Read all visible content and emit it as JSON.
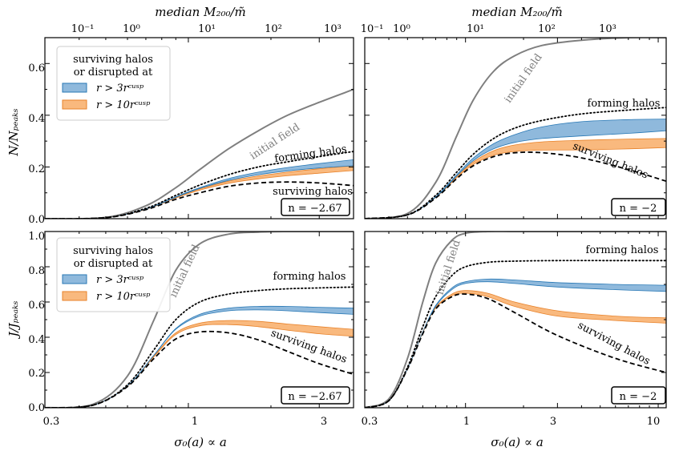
{
  "figure": {
    "top_axis_label": "median M₂₀₀/m̃",
    "bottom_axis_label": "σ₀(a) ∝ a",
    "ylabel_top": "N/Nₚₑₐₖₛ",
    "ylabel_bottom": "J/Jₚₑₐₖₛ",
    "top_ticks_left": [
      "10⁻¹",
      "10⁰",
      "10¹",
      "10²",
      "10³"
    ],
    "top_ticks_right": [
      "10⁻¹",
      "10⁰",
      "10¹",
      "10²",
      "10³"
    ],
    "bottom_ticks_left": [
      "0.3",
      "1",
      "3"
    ],
    "bottom_ticks_right": [
      "0.3",
      "1",
      "3",
      "10"
    ],
    "y_ticks_top": [
      "0.0",
      "0.2",
      "0.4",
      "0.6"
    ],
    "y_ticks_bottom": [
      "0.0",
      "0.2",
      "0.4",
      "0.6",
      "0.8",
      "1.0"
    ],
    "legend": {
      "title_line1": "surviving halos",
      "title_line2": "or disrupted at",
      "entry1": "r > 3rᶜᵘˢᵖ",
      "entry2": "r > 10rᶜᵘˢᵖ"
    },
    "labels": {
      "initial_field": "initial field",
      "forming_halos": "forming halos",
      "surviving_halos": "surviving halos"
    },
    "n_left": "n = −2.67",
    "n_right": "n = −2",
    "colors": {
      "initial": "#7f7f7f",
      "blue_fill": "#8fb9dc",
      "blue_line": "#2878b5",
      "orange_fill": "#f9b97e",
      "orange_line": "#e8822a"
    }
  },
  "chart_data": [
    {
      "type": "line",
      "panel": "top-left",
      "xscale": "log",
      "xlim": [
        0.3,
        4.0
      ],
      "ylim": [
        0.0,
        0.7
      ],
      "ylabel": "N/N_peaks",
      "series": [
        {
          "name": "initial field",
          "x": [
            0.3,
            0.5,
            0.7,
            0.9,
            1.1,
            1.4,
            1.8,
            2.3,
            3.0,
            4.0
          ],
          "y": [
            0.0,
            0.005,
            0.05,
            0.12,
            0.19,
            0.27,
            0.34,
            0.4,
            0.45,
            0.5
          ]
        },
        {
          "name": "forming halos",
          "x": [
            0.3,
            0.5,
            0.7,
            0.9,
            1.1,
            1.4,
            1.8,
            2.3,
            3.0,
            4.0
          ],
          "y": [
            0.0,
            0.004,
            0.04,
            0.09,
            0.13,
            0.17,
            0.2,
            0.22,
            0.24,
            0.26
          ]
        },
        {
          "name": "r > 3r_cusp upper",
          "x": [
            0.3,
            0.5,
            0.7,
            0.9,
            1.1,
            1.4,
            1.8,
            2.3,
            3.0,
            4.0
          ],
          "y": [
            0.0,
            0.004,
            0.038,
            0.085,
            0.12,
            0.155,
            0.18,
            0.198,
            0.213,
            0.228
          ]
        },
        {
          "name": "r > 3r_cusp lower",
          "x": [
            0.3,
            0.5,
            0.7,
            0.9,
            1.1,
            1.4,
            1.8,
            2.3,
            3.0,
            4.0
          ],
          "y": [
            0.0,
            0.004,
            0.037,
            0.083,
            0.117,
            0.148,
            0.17,
            0.185,
            0.196,
            0.205
          ]
        },
        {
          "name": "r > 10r_cusp upper",
          "x": [
            0.3,
            0.5,
            0.7,
            0.9,
            1.1,
            1.4,
            1.8,
            2.3,
            3.0,
            4.0
          ],
          "y": [
            0.0,
            0.004,
            0.037,
            0.082,
            0.115,
            0.145,
            0.165,
            0.18,
            0.193,
            0.205
          ]
        },
        {
          "name": "r > 10r_cusp lower",
          "x": [
            0.3,
            0.5,
            0.7,
            0.9,
            1.1,
            1.4,
            1.8,
            2.3,
            3.0,
            4.0
          ],
          "y": [
            0.0,
            0.004,
            0.036,
            0.08,
            0.11,
            0.137,
            0.154,
            0.166,
            0.176,
            0.186
          ]
        },
        {
          "name": "surviving halos",
          "x": [
            0.3,
            0.5,
            0.7,
            0.9,
            1.1,
            1.4,
            1.8,
            2.3,
            3.0,
            4.0
          ],
          "y": [
            0.0,
            0.004,
            0.035,
            0.075,
            0.1,
            0.125,
            0.138,
            0.142,
            0.138,
            0.128
          ]
        }
      ],
      "annotation": "n = −2.67"
    },
    {
      "type": "line",
      "panel": "top-right",
      "xscale": "log",
      "xlim": [
        0.3,
        11.0
      ],
      "ylim": [
        0.0,
        0.7
      ],
      "series": [
        {
          "name": "initial field",
          "x": [
            0.3,
            0.5,
            0.7,
            0.9,
            1.1,
            1.4,
            1.8,
            2.5,
            4.0,
            7.0,
            11.0
          ],
          "y": [
            0.0,
            0.02,
            0.14,
            0.32,
            0.46,
            0.57,
            0.63,
            0.67,
            0.69,
            0.7,
            0.7
          ]
        },
        {
          "name": "forming halos",
          "x": [
            0.3,
            0.5,
            0.7,
            0.9,
            1.1,
            1.4,
            1.8,
            2.5,
            4.0,
            7.0,
            11.0
          ],
          "y": [
            0.0,
            0.015,
            0.09,
            0.18,
            0.25,
            0.31,
            0.35,
            0.38,
            0.405,
            0.42,
            0.43
          ]
        },
        {
          "name": "r > 3r_cusp upper",
          "x": [
            0.3,
            0.5,
            0.7,
            0.9,
            1.1,
            1.4,
            1.8,
            2.5,
            4.0,
            7.0,
            11.0
          ],
          "y": [
            0.0,
            0.015,
            0.085,
            0.17,
            0.235,
            0.29,
            0.325,
            0.355,
            0.375,
            0.383,
            0.385
          ]
        },
        {
          "name": "r > 3r_cusp lower",
          "x": [
            0.3,
            0.5,
            0.7,
            0.9,
            1.1,
            1.4,
            1.8,
            2.5,
            4.0,
            7.0,
            11.0
          ],
          "y": [
            0.0,
            0.015,
            0.083,
            0.165,
            0.225,
            0.27,
            0.295,
            0.31,
            0.32,
            0.33,
            0.34
          ]
        },
        {
          "name": "r > 10r_cusp upper",
          "x": [
            0.3,
            0.5,
            0.7,
            0.9,
            1.1,
            1.4,
            1.8,
            2.5,
            4.0,
            7.0,
            11.0
          ],
          "y": [
            0.0,
            0.015,
            0.083,
            0.163,
            0.22,
            0.263,
            0.285,
            0.297,
            0.303,
            0.308,
            0.31
          ]
        },
        {
          "name": "r > 10r_cusp lower",
          "x": [
            0.3,
            0.5,
            0.7,
            0.9,
            1.1,
            1.4,
            1.8,
            2.5,
            4.0,
            7.0,
            11.0
          ],
          "y": [
            0.0,
            0.015,
            0.082,
            0.158,
            0.21,
            0.245,
            0.26,
            0.265,
            0.266,
            0.27,
            0.275
          ]
        },
        {
          "name": "surviving halos",
          "x": [
            0.3,
            0.5,
            0.7,
            0.9,
            1.1,
            1.4,
            1.8,
            2.5,
            4.0,
            7.0,
            11.0
          ],
          "y": [
            0.0,
            0.015,
            0.08,
            0.155,
            0.205,
            0.24,
            0.255,
            0.255,
            0.235,
            0.19,
            0.145
          ]
        }
      ],
      "annotation": "n = −2"
    },
    {
      "type": "line",
      "panel": "bottom-left",
      "xscale": "log",
      "xlim": [
        0.3,
        4.0
      ],
      "ylim": [
        0.0,
        1.0
      ],
      "ylabel": "J/J_peaks",
      "series": [
        {
          "name": "initial field",
          "x": [
            0.3,
            0.45,
            0.6,
            0.75,
            0.9,
            1.1,
            1.4,
            1.8,
            2.3,
            3.0,
            4.0
          ],
          "y": [
            0.0,
            0.02,
            0.18,
            0.5,
            0.78,
            0.93,
            0.985,
            0.997,
            1.0,
            1.0,
            1.0
          ]
        },
        {
          "name": "forming halos",
          "x": [
            0.3,
            0.45,
            0.6,
            0.75,
            0.9,
            1.1,
            1.4,
            1.8,
            2.3,
            3.0,
            4.0
          ],
          "y": [
            0.0,
            0.015,
            0.13,
            0.33,
            0.5,
            0.6,
            0.645,
            0.665,
            0.675,
            0.68,
            0.685
          ]
        },
        {
          "name": "r > 3r_cusp upper",
          "x": [
            0.3,
            0.45,
            0.6,
            0.75,
            0.9,
            1.1,
            1.4,
            1.8,
            2.3,
            3.0,
            4.0
          ],
          "y": [
            0.0,
            0.015,
            0.125,
            0.3,
            0.45,
            0.53,
            0.565,
            0.575,
            0.575,
            0.57,
            0.565
          ]
        },
        {
          "name": "r > 3r_cusp lower",
          "x": [
            0.3,
            0.45,
            0.6,
            0.75,
            0.9,
            1.1,
            1.4,
            1.8,
            2.3,
            3.0,
            4.0
          ],
          "y": [
            0.0,
            0.015,
            0.124,
            0.298,
            0.445,
            0.52,
            0.55,
            0.555,
            0.55,
            0.54,
            0.53
          ]
        },
        {
          "name": "r > 10r_cusp upper",
          "x": [
            0.3,
            0.45,
            0.6,
            0.75,
            0.9,
            1.1,
            1.4,
            1.8,
            2.3,
            3.0,
            4.0
          ],
          "y": [
            0.0,
            0.015,
            0.123,
            0.295,
            0.425,
            0.48,
            0.495,
            0.49,
            0.475,
            0.46,
            0.445
          ]
        },
        {
          "name": "r > 10r_cusp lower",
          "x": [
            0.3,
            0.45,
            0.6,
            0.75,
            0.9,
            1.1,
            1.4,
            1.8,
            2.3,
            3.0,
            4.0
          ],
          "y": [
            0.0,
            0.015,
            0.122,
            0.29,
            0.415,
            0.465,
            0.472,
            0.46,
            0.44,
            0.42,
            0.405
          ]
        },
        {
          "name": "surviving halos",
          "x": [
            0.3,
            0.45,
            0.6,
            0.75,
            0.9,
            1.1,
            1.4,
            1.8,
            2.3,
            3.0,
            4.0
          ],
          "y": [
            0.0,
            0.015,
            0.12,
            0.28,
            0.39,
            0.43,
            0.425,
            0.385,
            0.32,
            0.25,
            0.19
          ]
        }
      ],
      "annotation": "n = −2.67"
    },
    {
      "type": "line",
      "panel": "bottom-right",
      "xscale": "log",
      "xlim": [
        0.3,
        11.0
      ],
      "ylim": [
        0.0,
        1.0
      ],
      "series": [
        {
          "name": "initial field",
          "x": [
            0.3,
            0.4,
            0.5,
            0.6,
            0.7,
            0.85,
            1.0,
            1.3,
            1.8,
            3.0,
            6.0,
            11.0
          ],
          "y": [
            0.0,
            0.05,
            0.28,
            0.6,
            0.82,
            0.95,
            0.99,
            1.0,
            1.0,
            1.0,
            1.0,
            1.0
          ]
        },
        {
          "name": "forming halos",
          "x": [
            0.3,
            0.4,
            0.5,
            0.6,
            0.7,
            0.85,
            1.0,
            1.3,
            1.8,
            3.0,
            6.0,
            11.0
          ],
          "y": [
            0.0,
            0.04,
            0.23,
            0.46,
            0.63,
            0.75,
            0.8,
            0.825,
            0.832,
            0.835,
            0.835,
            0.835
          ]
        },
        {
          "name": "r > 3r_cusp upper",
          "x": [
            0.3,
            0.4,
            0.5,
            0.6,
            0.7,
            0.85,
            1.0,
            1.3,
            1.8,
            3.0,
            6.0,
            11.0
          ],
          "y": [
            0.0,
            0.04,
            0.22,
            0.43,
            0.58,
            0.68,
            0.715,
            0.73,
            0.725,
            0.71,
            0.7,
            0.695
          ]
        },
        {
          "name": "r > 3r_cusp lower",
          "x": [
            0.3,
            0.4,
            0.5,
            0.6,
            0.7,
            0.85,
            1.0,
            1.3,
            1.8,
            3.0,
            6.0,
            11.0
          ],
          "y": [
            0.0,
            0.04,
            0.22,
            0.43,
            0.575,
            0.67,
            0.705,
            0.715,
            0.705,
            0.685,
            0.67,
            0.66
          ]
        },
        {
          "name": "r > 10r_cusp upper",
          "x": [
            0.3,
            0.4,
            0.5,
            0.6,
            0.7,
            0.85,
            1.0,
            1.3,
            1.8,
            3.0,
            6.0,
            11.0
          ],
          "y": [
            0.0,
            0.04,
            0.22,
            0.43,
            0.57,
            0.645,
            0.665,
            0.65,
            0.6,
            0.55,
            0.52,
            0.51
          ]
        },
        {
          "name": "r > 10r_cusp lower",
          "x": [
            0.3,
            0.4,
            0.5,
            0.6,
            0.7,
            0.85,
            1.0,
            1.3,
            1.8,
            3.0,
            6.0,
            11.0
          ],
          "y": [
            0.0,
            0.04,
            0.22,
            0.425,
            0.565,
            0.635,
            0.65,
            0.63,
            0.575,
            0.52,
            0.495,
            0.48
          ]
        },
        {
          "name": "surviving halos",
          "x": [
            0.3,
            0.4,
            0.5,
            0.6,
            0.7,
            0.85,
            1.0,
            1.3,
            1.8,
            3.0,
            6.0,
            11.0
          ],
          "y": [
            0.0,
            0.04,
            0.22,
            0.42,
            0.56,
            0.63,
            0.645,
            0.62,
            0.54,
            0.41,
            0.28,
            0.2
          ]
        }
      ],
      "annotation": "n = −2"
    }
  ]
}
